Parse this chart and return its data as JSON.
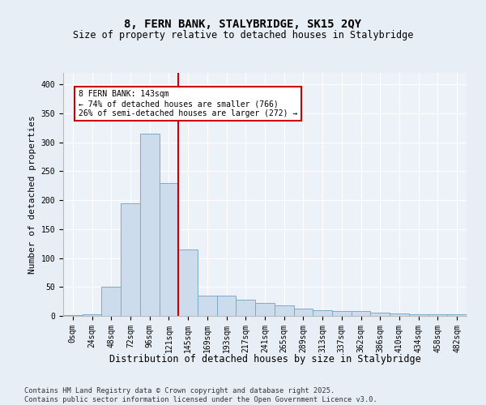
{
  "title": "8, FERN BANK, STALYBRIDGE, SK15 2QY",
  "subtitle": "Size of property relative to detached houses in Stalybridge",
  "xlabel": "Distribution of detached houses by size in Stalybridge",
  "ylabel": "Number of detached properties",
  "bar_labels": [
    "0sqm",
    "24sqm",
    "48sqm",
    "72sqm",
    "96sqm",
    "121sqm",
    "145sqm",
    "169sqm",
    "193sqm",
    "217sqm",
    "241sqm",
    "265sqm",
    "289sqm",
    "313sqm",
    "337sqm",
    "362sqm",
    "386sqm",
    "410sqm",
    "434sqm",
    "458sqm",
    "482sqm"
  ],
  "bar_values": [
    2,
    3,
    50,
    195,
    315,
    230,
    115,
    35,
    35,
    28,
    22,
    18,
    13,
    10,
    8,
    8,
    5,
    4,
    3,
    3,
    3
  ],
  "bar_color": "#ccdcec",
  "bar_edge_color": "#7aaac8",
  "vline_index": 6,
  "vline_color": "#cc0000",
  "annotation_title": "8 FERN BANK: 143sqm",
  "annotation_line1": "← 74% of detached houses are smaller (766)",
  "annotation_line2": "26% of semi-detached houses are larger (272) →",
  "annotation_box_facecolor": "#ffffff",
  "annotation_box_edgecolor": "#cc0000",
  "ylim": [
    0,
    420
  ],
  "yticks": [
    0,
    50,
    100,
    150,
    200,
    250,
    300,
    350,
    400
  ],
  "footer": "Contains HM Land Registry data © Crown copyright and database right 2025.\nContains public sector information licensed under the Open Government Licence v3.0.",
  "bg_color": "#e8eef5",
  "plot_bg_color": "#edf2f8",
  "grid_color": "#ffffff",
  "title_fontsize": 10,
  "subtitle_fontsize": 8.5,
  "tick_fontsize": 7,
  "ylabel_fontsize": 8,
  "xlabel_fontsize": 8.5,
  "footer_fontsize": 6.2
}
